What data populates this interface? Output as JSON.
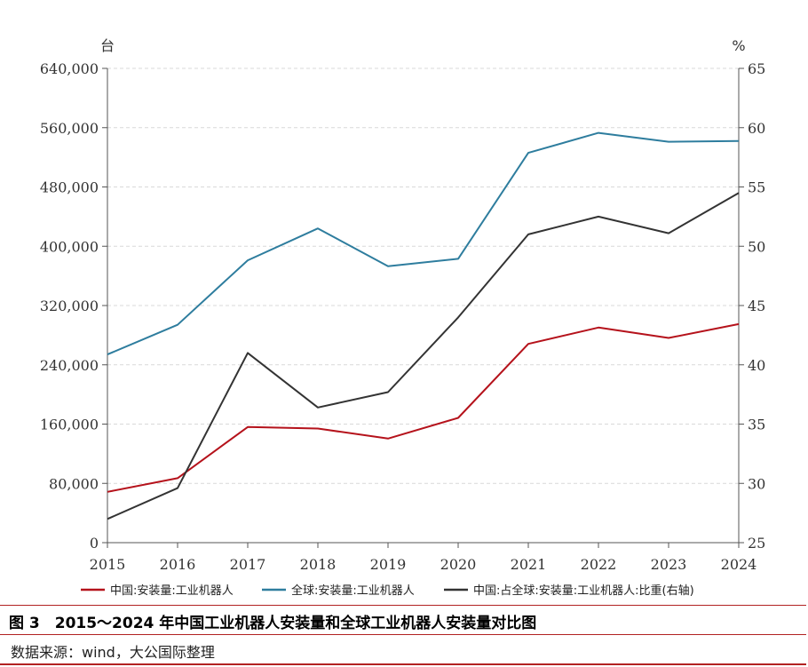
{
  "chart_data": {
    "type": "line",
    "categories": [
      "2015",
      "2016",
      "2017",
      "2018",
      "2019",
      "2020",
      "2021",
      "2022",
      "2023",
      "2024"
    ],
    "y_left": {
      "unit": "台",
      "ylim": [
        0,
        640000
      ],
      "ticks": [
        0,
        80000,
        160000,
        240000,
        320000,
        400000,
        480000,
        560000,
        640000
      ],
      "tick_labels": [
        "0",
        "80,000",
        "160,000",
        "240,000",
        "320,000",
        "400,000",
        "480,000",
        "560,000",
        "640,000"
      ]
    },
    "y_right": {
      "unit": "%",
      "ylim": [
        25,
        65
      ],
      "ticks": [
        25,
        30,
        35,
        40,
        45,
        50,
        55,
        60,
        65
      ],
      "tick_labels": [
        "25",
        "30",
        "35",
        "40",
        "45",
        "50",
        "55",
        "60",
        "65"
      ]
    },
    "grid": true,
    "legend_position": "bottom",
    "series": [
      {
        "name": "中国:安装量:工业机器人",
        "axis": "left",
        "color": "#b5121b",
        "values": [
          68556,
          87000,
          156000,
          154000,
          140500,
          168400,
          268200,
          290300,
          276300,
          295000
        ]
      },
      {
        "name": "全球:安装量:工业机器人",
        "axis": "left",
        "color": "#2e7d9e",
        "values": [
          254000,
          294000,
          381000,
          424000,
          373000,
          383000,
          526000,
          553000,
          541000,
          542000
        ]
      },
      {
        "name": "中国:占全球:安装量:工业机器人:比重(右轴)",
        "axis": "right",
        "color": "#333333",
        "values": [
          27.0,
          29.6,
          41.0,
          36.4,
          37.7,
          44.0,
          51.0,
          52.5,
          51.1,
          54.5
        ]
      }
    ]
  },
  "caption": "图 3　2015～2024 年中国工业机器人安装量和全球工业机器人安装量对比图",
  "source": "数据来源：wind，大公国际整理"
}
